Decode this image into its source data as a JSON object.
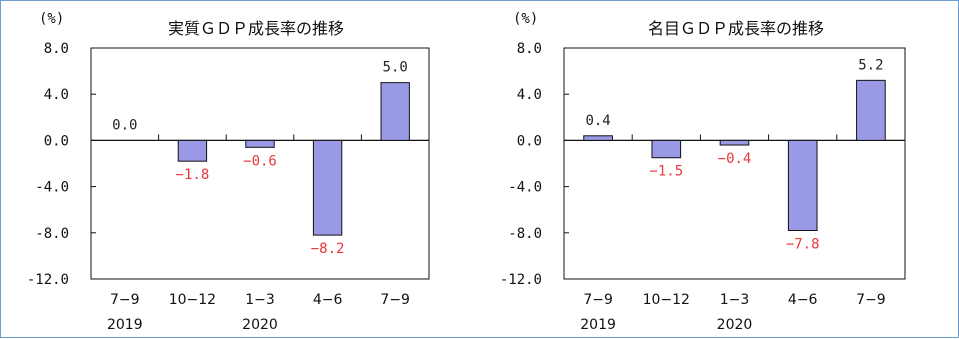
{
  "chart_data": [
    {
      "type": "bar",
      "title": "実質ＧＤＰ成長率の推移",
      "unit_label": "(%)",
      "categories": [
        "7−9",
        "10−12",
        "1−3",
        "4−6",
        "7−9"
      ],
      "year_labels": [
        "2019",
        "",
        "2020",
        "",
        ""
      ],
      "values": [
        0.0,
        -1.8,
        -0.6,
        -8.2,
        5.0
      ],
      "data_labels": [
        "0.0",
        "−1.8",
        "−0.6",
        "−8.2",
        "5.0"
      ],
      "yticks": [
        "8.0",
        "4.0",
        "0.0",
        "-4.0",
        "-8.0",
        "-12.0"
      ],
      "ylim": [
        -12,
        8
      ],
      "grid": false,
      "bar_color": "#9999e6",
      "positive_label_color": "#222222",
      "negative_label_color": "#e8383d"
    },
    {
      "type": "bar",
      "title": "名目ＧＤＰ成長率の推移",
      "unit_label": "(%)",
      "categories": [
        "7−9",
        "10−12",
        "1−3",
        "4−6",
        "7−9"
      ],
      "year_labels": [
        "2019",
        "",
        "2020",
        "",
        ""
      ],
      "values": [
        0.4,
        -1.5,
        -0.4,
        -7.8,
        5.2
      ],
      "data_labels": [
        "0.4",
        "−1.5",
        "−0.4",
        "−7.8",
        "5.2"
      ],
      "yticks": [
        "8.0",
        "4.0",
        "0.0",
        "-4.0",
        "-8.0",
        "-12.0"
      ],
      "ylim": [
        -12,
        8
      ],
      "grid": false,
      "bar_color": "#9999e6",
      "positive_label_color": "#222222",
      "negative_label_color": "#e8383d"
    }
  ]
}
